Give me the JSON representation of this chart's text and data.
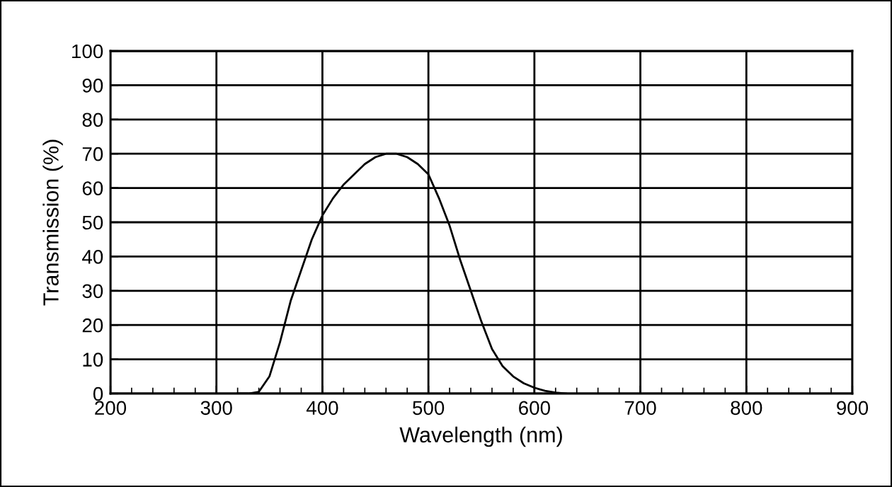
{
  "chart_data": {
    "type": "line",
    "xlabel": "Wavelength (nm)",
    "ylabel": "Transmission (%)",
    "x": [
      320,
      330,
      340,
      350,
      360,
      370,
      380,
      390,
      400,
      410,
      420,
      430,
      440,
      450,
      460,
      470,
      480,
      490,
      500,
      510,
      520,
      530,
      540,
      550,
      560,
      570,
      580,
      590,
      600,
      610,
      620,
      630
    ],
    "series": [
      {
        "color": "#000000",
        "values": [
          0,
          0,
          0.5,
          5,
          15,
          27,
          36,
          45,
          52,
          57,
          61,
          64,
          67,
          69,
          70,
          70,
          69,
          67,
          64,
          57,
          49,
          39,
          30,
          21,
          13,
          8,
          5,
          3,
          1.7,
          0.8,
          0.3,
          0
        ]
      }
    ],
    "xlim": [
      200,
      900
    ],
    "xticks": [
      200,
      300,
      400,
      500,
      600,
      700,
      800,
      900
    ],
    "ylim": [
      0,
      100
    ],
    "yticks": [
      0,
      10,
      20,
      30,
      40,
      50,
      60,
      70,
      80,
      90,
      100
    ],
    "grid": true,
    "marker": "none",
    "line_style": "solid"
  }
}
